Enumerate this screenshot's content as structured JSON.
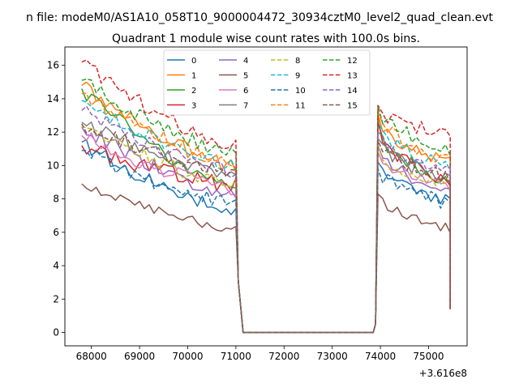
{
  "figure": {
    "suptitle": "n file: modeM0/AS1A10_058T10_9000004472_30934cztM0_level2_quad_clean.evt"
  },
  "chart_data": {
    "type": "line",
    "title": "Quadrant 1 module wise count rates with 100.0s bins.",
    "xlabel": "",
    "ylabel": "",
    "x_offset_label": "+3.616e8",
    "xlim": [
      67450,
      75800
    ],
    "ylim": [
      -0.8,
      17.1
    ],
    "x_ticks": [
      68000,
      69000,
      70000,
      71000,
      72000,
      73000,
      74000,
      75000
    ],
    "x_tick_labels": [
      "68000",
      "69000",
      "70000",
      "71000",
      "72000",
      "73000",
      "74000",
      "75000"
    ],
    "y_ticks": [
      0,
      2,
      4,
      6,
      8,
      10,
      12,
      14,
      16
    ],
    "y_tick_labels": [
      "0",
      "2",
      "4",
      "6",
      "8",
      "10",
      "12",
      "14",
      "16"
    ],
    "grid": false,
    "legend_position": "top-center",
    "legend_columns": 4,
    "x_rule": {
      "first_start": 67800,
      "first_end": 71000,
      "gap_start": 71150,
      "gap_end": 73850,
      "second_start": 73950,
      "second_end": 75450,
      "step": 100
    },
    "series": [
      {
        "name": "0",
        "color": "#1f77b4",
        "dash": "solid",
        "start1": 11.4,
        "end1": 7.2,
        "start2": 10.2,
        "end2": 7.9,
        "noise": 0.45,
        "seed": 11
      },
      {
        "name": "1",
        "color": "#ff7f0e",
        "dash": "solid",
        "start1": 14.8,
        "end1": 9.9,
        "start2": 13.1,
        "end2": 10.1,
        "noise": 0.45,
        "seed": 12
      },
      {
        "name": "2",
        "color": "#2ca02c",
        "dash": "solid",
        "start1": 14.6,
        "end1": 8.6,
        "start2": 12.5,
        "end2": 9.0,
        "noise": 0.5,
        "seed": 13
      },
      {
        "name": "3",
        "color": "#d62728",
        "dash": "solid",
        "start1": 11.2,
        "end1": 8.8,
        "start2": 12.8,
        "end2": 8.8,
        "noise": 0.5,
        "seed": 14
      },
      {
        "name": "4",
        "color": "#9467bd",
        "dash": "solid",
        "start1": 12.3,
        "end1": 8.2,
        "start2": 11.2,
        "end2": 8.3,
        "noise": 0.45,
        "seed": 15
      },
      {
        "name": "5",
        "color": "#8c564b",
        "dash": "solid",
        "start1": 8.9,
        "end1": 6.2,
        "start2": 8.3,
        "end2": 6.2,
        "noise": 0.3,
        "seed": 16
      },
      {
        "name": "6",
        "color": "#e377c2",
        "dash": "solid",
        "start1": 11.8,
        "end1": 8.6,
        "start2": 10.8,
        "end2": 8.6,
        "noise": 0.45,
        "seed": 17
      },
      {
        "name": "7",
        "color": "#7f7f7f",
        "dash": "solid",
        "start1": 12.6,
        "end1": 9.4,
        "start2": 11.6,
        "end2": 9.2,
        "noise": 0.45,
        "seed": 18
      },
      {
        "name": "8",
        "color": "#bcbd22",
        "dash": "dashed",
        "start1": 12.4,
        "end1": 8.8,
        "start2": 11.2,
        "end2": 8.6,
        "noise": 0.45,
        "seed": 19
      },
      {
        "name": "9",
        "color": "#17becf",
        "dash": "dashed",
        "start1": 13.9,
        "end1": 9.9,
        "start2": 12.6,
        "end2": 9.9,
        "noise": 0.45,
        "seed": 20
      },
      {
        "name": "10",
        "color": "#1f77b4",
        "dash": "dashed",
        "start1": 10.9,
        "end1": 7.7,
        "start2": 9.8,
        "end2": 7.7,
        "noise": 0.45,
        "seed": 21
      },
      {
        "name": "11",
        "color": "#ff7f0e",
        "dash": "dashed",
        "start1": 14.3,
        "end1": 10.2,
        "start2": 13.2,
        "end2": 10.3,
        "noise": 0.45,
        "seed": 22
      },
      {
        "name": "12",
        "color": "#2ca02c",
        "dash": "dashed",
        "start1": 15.1,
        "end1": 10.7,
        "start2": 13.6,
        "end2": 10.9,
        "noise": 0.45,
        "seed": 23
      },
      {
        "name": "13",
        "color": "#d62728",
        "dash": "dashed",
        "start1": 16.2,
        "end1": 11.1,
        "start2": 13.6,
        "end2": 11.8,
        "noise": 0.45,
        "seed": 24
      },
      {
        "name": "14",
        "color": "#9467bd",
        "dash": "dashed",
        "start1": 13.3,
        "end1": 9.6,
        "start2": 12.0,
        "end2": 9.6,
        "noise": 0.45,
        "seed": 25
      },
      {
        "name": "15",
        "color": "#8c564b",
        "dash": "dashed",
        "start1": 12.5,
        "end1": 9.5,
        "start2": 11.5,
        "end2": 9.3,
        "noise": 0.45,
        "seed": 26
      }
    ]
  }
}
